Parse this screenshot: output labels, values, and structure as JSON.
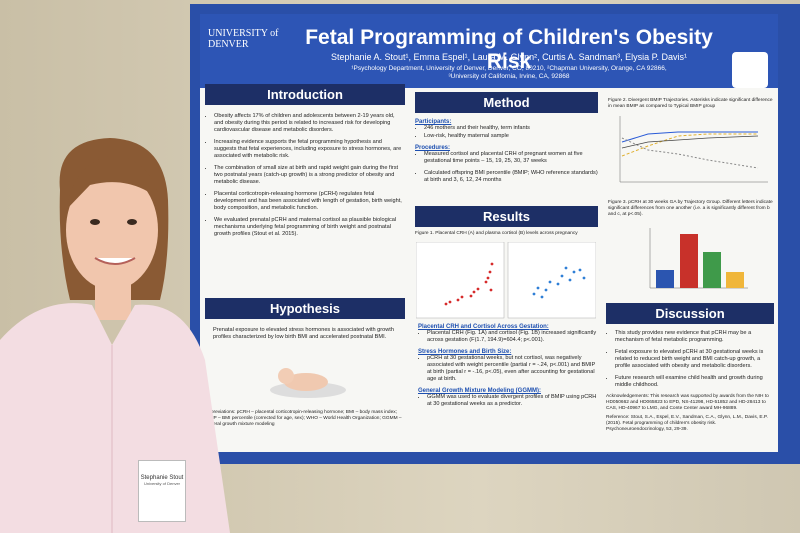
{
  "poster": {
    "logo": "UNIVERSITY of DENVER",
    "title": "Fetal Programming of Children's Obesity Risk",
    "authors": "Stephanie A. Stout¹, Emma Espel¹, Laura M. Glynn², Curtis A. Sandman³, Elysia P. Davis¹",
    "affiliations": [
      "¹Psychology Department, University of Denver, Denver, CO, 80210, ²Chapman University, Orange, CA 92866,",
      "³University of California, Irvine, CA, 92868"
    ],
    "introduction": {
      "heading": "Introduction",
      "bullets": [
        "Obesity affects 17% of children and adolescents between 2-19 years old, and obesity during this period is related to increased risk for developing cardiovascular disease and metabolic disorders.",
        "Increasing evidence supports the fetal programming hypothesis and suggests that fetal experiences, including exposure to stress hormones, are associated with metabolic risk.",
        "The combination of small size at birth and rapid weight gain during the first two postnatal years (catch-up growth) is a strong predictor of obesity and metabolic disease.",
        "Placental corticotropin-releasing hormone (pCRH) regulates fetal development and has been associated with length of gestation, birth weight, body composition, and metabolic function.",
        "We evaluated prenatal pCRH and maternal cortisol as plausible biological mechanisms underlying fetal programming of birth weight and postnatal growth profiles (Stout et al. 2015)."
      ]
    },
    "hypothesis": {
      "heading": "Hypothesis",
      "text": "Prenatal exposure to elevated stress hormones is associated with growth profiles characterized by low birth BMI and accelerated postnatal BMI."
    },
    "abbreviations": "Abbreviations: pCRH – placental corticotropin-releasing hormone; BMI – body mass index; BMIP – BMI percentile (corrected for age, sex); WHO – World Health Organization; GGMM – general growth mixture modeling",
    "method": {
      "heading": "Method",
      "participants_label": "Participants:",
      "participants": [
        "246 mothers and their healthy, term infants",
        "Low-risk, healthy maternal sample"
      ],
      "procedures_label": "Procedures:",
      "procedures": [
        "Measured cortisol and placental CRH of pregnant women at five gestational time points – 15, 19, 25, 30, 37 weeks",
        "Calculated offspring BMI percentile (BMIP; WHO reference standards) at birth and 3, 6, 12, 24 months"
      ]
    },
    "results": {
      "heading": "Results",
      "figure1_caption": "Figure 1. Placental CRH (A) and plasma cortisol (B) levels across pregnancy",
      "sections": [
        {
          "title": "Placental CRH and Cortisol Across Gestation:",
          "text": "Placental CRH (Fig. 1A) and cortisol (Fig. 1B) increased significantly across gestation (F(1.7, 194.9)=604.4; p<.001)."
        },
        {
          "title": "Stress Hormones and Birth Size:",
          "text": "pCRH at 30 gestational weeks, but not cortisol, was negatively associated with weight percentile (partial r = -.24, p<.001) and BMIP at birth (partial r = -.16, p<.05), even after accounting for gestational age at birth."
        },
        {
          "title": "General Growth Mixture Modeling (GGMM):",
          "text": "GGMM was used to evaluate divergent profiles of BMIP using pCRH at 30 gestational weeks as a predictor."
        }
      ]
    },
    "figure2_caption": "Figure 2. Divergent BMIP Trajectories. Asterisks indicate significant difference in mean BMIP as compared to Typical BMIP group",
    "figure3_caption": "Figure 3. pCRH at 30 weeks GA by Trajectory Group. Different letters indicate significant differences from one another (i.e. a is significantly different from b and c, at p<.05).",
    "discussion": {
      "heading": "Discussion",
      "bullets": [
        "This study provides new evidence that pCRH may be a mechanism of fetal metabolic programming.",
        "Fetal exposure to elevated pCRH at 30 gestational weeks is related to reduced birth weight and BMI catch-up growth, a profile associated with obesity and metabolic disorders.",
        "Future research will examine child health and growth during middle childhood."
      ]
    },
    "acknowledgements": "Acknowledgements: This research was supported by awards from the NIH to HD050662 and HD065823 to EPD, NS-41298, HD-51852 and HD-28413 to CAS, HD-40967 to LMG, and Conte Center award MH-96889.",
    "reference": "Reference: Stout, S.A., Espel, E.V., Sandman, C.A., Glynn, L.M., Davis, E.P. (2015). Fetal programming of children's obesity risk. Psychoneuroendocrinology, 53, 29-39."
  },
  "badge": {
    "name": "Stephanie Stout",
    "org": "University of Denver"
  }
}
